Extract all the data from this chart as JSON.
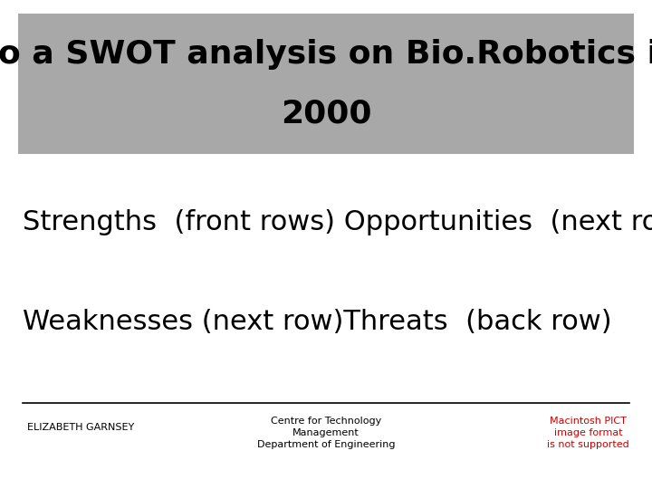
{
  "title_line1": "Do a SWOT analysis on Bio.Robotics in",
  "title_line2": "2000",
  "title_bg_color": "#a8a8a8",
  "title_text_color": "#000000",
  "body_bg_color": "#ffffff",
  "line1_text": "Strengths  (front rows) Opportunities  (next row)",
  "line2_text": "Weaknesses (next row)Threats  (back row)",
  "footer_left": "ELIZABETH GARNSEY",
  "footer_center_line1": "Centre for Technology",
  "footer_center_line2": "Management",
  "footer_center_line3": "Department of Engineering",
  "footer_right": "Macintosh PICT\nimage format\nis not supported",
  "footer_right_color": "#cc0000",
  "body_text_color": "#000000",
  "footer_text_color": "#000000",
  "title_fontsize": 26,
  "body_fontsize": 22,
  "footer_fontsize": 8
}
